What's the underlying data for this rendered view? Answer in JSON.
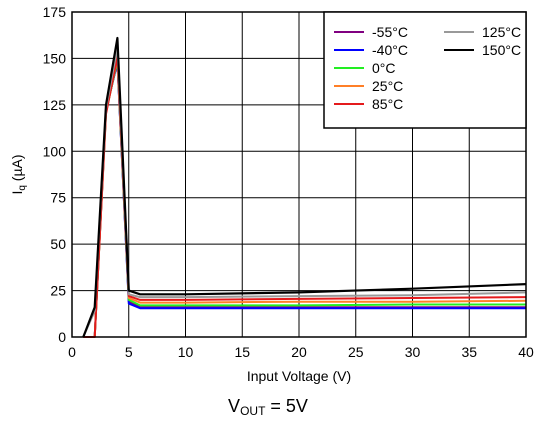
{
  "chart_data": {
    "type": "line",
    "title": "",
    "xlabel": "Input Voltage (V)",
    "ylabel_main": "I",
    "ylabel_sub": "q",
    "ylabel_unit": " (µA)",
    "xlim": [
      0,
      40
    ],
    "ylim": [
      0,
      175
    ],
    "xticks": [
      0,
      5,
      10,
      15,
      20,
      25,
      30,
      35,
      40
    ],
    "yticks": [
      0,
      25,
      50,
      75,
      100,
      125,
      150,
      175
    ],
    "grid": true,
    "legend_placement": "top-right",
    "series": [
      {
        "name": "-55°C",
        "color": "#800080",
        "x": [
          1,
          2,
          3,
          4,
          5,
          6,
          10,
          20,
          30,
          40
        ],
        "y": [
          0,
          0,
          122,
          148,
          19,
          16,
          16,
          16,
          16,
          16
        ]
      },
      {
        "name": "-40°C",
        "color": "#0000ff",
        "x": [
          1,
          2,
          3,
          4,
          5,
          6,
          10,
          20,
          30,
          40
        ],
        "y": [
          0,
          0,
          122,
          148,
          18,
          15.5,
          15.5,
          15.5,
          15.5,
          15.5
        ]
      },
      {
        "name": "0°C",
        "color": "#22ee22",
        "x": [
          1,
          2,
          3,
          4,
          5,
          6,
          10,
          20,
          30,
          40
        ],
        "y": [
          0,
          0,
          121,
          149,
          20,
          17,
          17,
          17,
          17.5,
          17.5
        ]
      },
      {
        "name": "25°C",
        "color": "#ff7f27",
        "x": [
          1,
          2,
          3,
          4,
          5,
          6,
          10,
          20,
          30,
          40
        ],
        "y": [
          0,
          0,
          121,
          150,
          21,
          18.5,
          18.5,
          19,
          19,
          19.5
        ]
      },
      {
        "name": "85°C",
        "color": "#e41a1c",
        "x": [
          1,
          2,
          3,
          4,
          5,
          6,
          10,
          20,
          30,
          40
        ],
        "y": [
          0,
          0,
          120,
          151,
          22,
          20,
          20,
          20.5,
          21,
          21.5
        ]
      },
      {
        "name": "125°C",
        "color": "#999999",
        "x": [
          1,
          2,
          3,
          4,
          5,
          6,
          10,
          20,
          30,
          40
        ],
        "y": [
          0,
          14,
          123,
          156,
          23,
          21.5,
          21.5,
          22,
          22.5,
          24
        ]
      },
      {
        "name": "150°C",
        "color": "#000000",
        "x": [
          1,
          2,
          3,
          4,
          5,
          6,
          10,
          20,
          30,
          40
        ],
        "y": [
          0,
          16,
          125,
          161,
          25,
          23,
          23,
          24,
          26,
          28.5
        ]
      }
    ]
  },
  "caption": {
    "main": "V",
    "sub": "OUT",
    "rest": " = 5V"
  }
}
